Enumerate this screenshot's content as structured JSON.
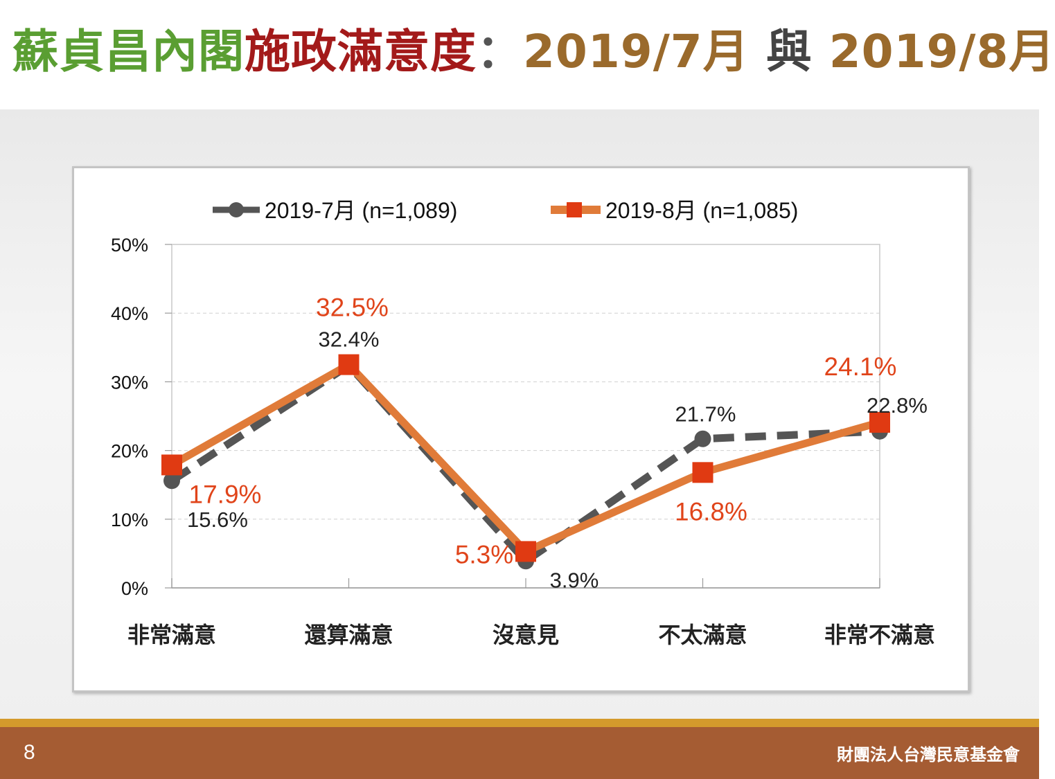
{
  "title": {
    "part1": "蘇貞昌內閣",
    "part2": "施政滿意度",
    "part3": "：",
    "part4": "2019/7月",
    "part5": "與",
    "part6": "2019/8月"
  },
  "colors": {
    "series_july": "#555555",
    "series_aug_line": "#e07b39",
    "series_aug_marker": "#e03a12",
    "label_aug": "#e0441a",
    "label_july": "#222222",
    "footer_bar": "#a55c33",
    "footer_accent": "#d49a2c"
  },
  "chart_data": {
    "type": "line",
    "categories": [
      "非常滿意",
      "還算滿意",
      "沒意見",
      "不太滿意",
      "非常不滿意"
    ],
    "ylim": [
      0,
      50
    ],
    "yticks": [
      "0%",
      "10%",
      "20%",
      "30%",
      "40%",
      "50%"
    ],
    "legend_position": "top",
    "grid": true,
    "series": [
      {
        "name": "2019-7月  (n=1,089)",
        "values": [
          15.6,
          32.4,
          3.9,
          21.7,
          22.8
        ],
        "labels": [
          "15.6%",
          "32.4%",
          "3.9%",
          "21.7%",
          "22.8%"
        ],
        "style": "dashed",
        "marker": "circle"
      },
      {
        "name": "2019-8月  (n=1,085)",
        "values": [
          17.9,
          32.5,
          5.3,
          16.8,
          24.1
        ],
        "labels": [
          "17.9%",
          "32.5%",
          "5.3%",
          "16.8%",
          "24.1%"
        ],
        "style": "solid",
        "marker": "square"
      }
    ]
  },
  "footer": {
    "page_number": "8",
    "organization": "財團法人台灣民意基金會"
  }
}
